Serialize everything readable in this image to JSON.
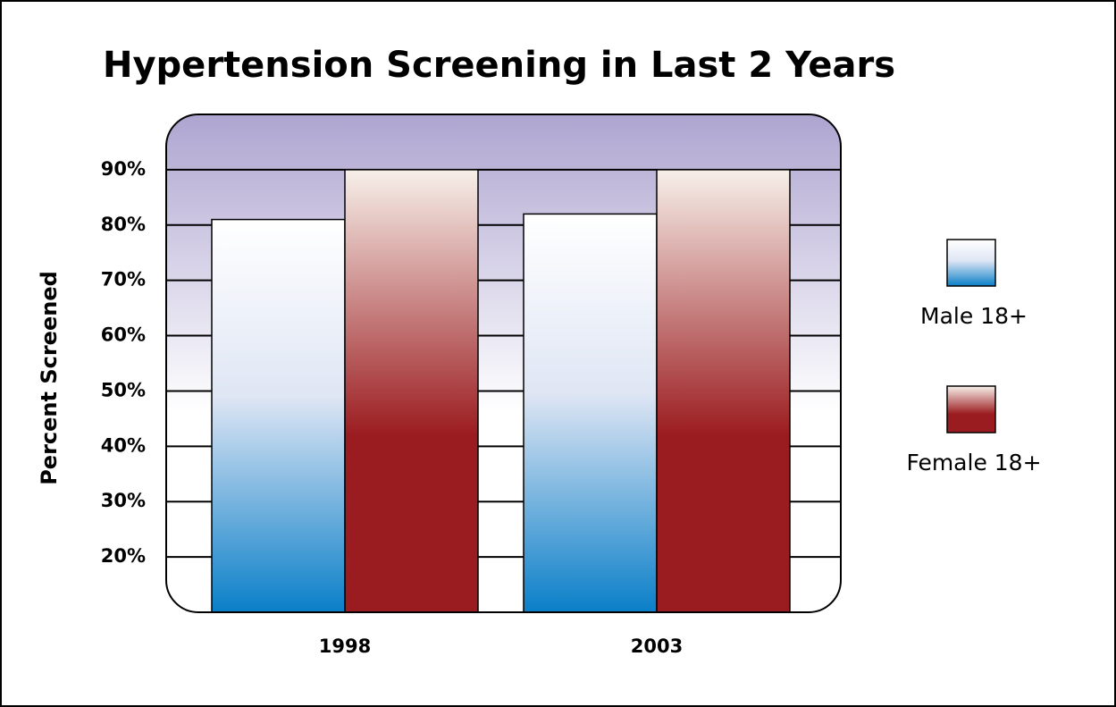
{
  "chart_data": {
    "type": "bar",
    "title": "Hypertension Screening in Last 2 Years",
    "y_label": "Percent Screened",
    "categories": [
      "1998",
      "2003"
    ],
    "series": [
      {
        "name": "Male 18+",
        "color": "#0a7fc8",
        "values": [
          81,
          82
        ]
      },
      {
        "name": "Female 18+",
        "color": "#9b1c20",
        "values": [
          90,
          90
        ]
      }
    ],
    "ylim": [
      10,
      100
    ],
    "yticks": [
      {
        "value": 20,
        "label": "20%"
      },
      {
        "value": 30,
        "label": "30%"
      },
      {
        "value": 40,
        "label": "40%"
      },
      {
        "value": 50,
        "label": "50%"
      },
      {
        "value": 60,
        "label": "60%"
      },
      {
        "value": 70,
        "label": "70%"
      },
      {
        "value": 80,
        "label": "80%"
      },
      {
        "value": 90,
        "label": "90%"
      }
    ],
    "grid": true,
    "legend": "right"
  }
}
